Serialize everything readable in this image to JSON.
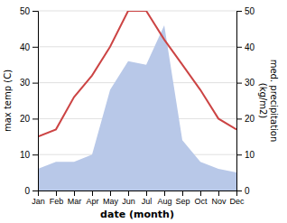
{
  "chart_data": {
    "type": "line",
    "x_label": "date (month)",
    "y_label": "max temp (C)",
    "y2_label": "med. precipitation\n(kg/m2)",
    "categories": [
      "Jan",
      "Feb",
      "Mar",
      "Apr",
      "May",
      "Jun",
      "Jul",
      "Aug",
      "Sep",
      "Oct",
      "Nov",
      "Dec"
    ],
    "series": [
      {
        "type": "area",
        "axis": "y2",
        "color": "#b8c8e8",
        "values": [
          6,
          8,
          8,
          10,
          28,
          36,
          35,
          46,
          14,
          8,
          6,
          5
        ]
      },
      {
        "type": "line",
        "color": "#cc4444",
        "values": [
          15,
          17,
          26,
          32,
          40,
          50,
          50,
          42,
          35,
          28,
          20,
          17
        ]
      }
    ],
    "ylim": [
      0,
      50
    ],
    "yticks": [
      0,
      10,
      20,
      30,
      40,
      50
    ],
    "y2lim": [
      0,
      50
    ],
    "y2ticks": [
      0,
      10,
      20,
      30,
      40,
      50
    ],
    "grid": true
  }
}
